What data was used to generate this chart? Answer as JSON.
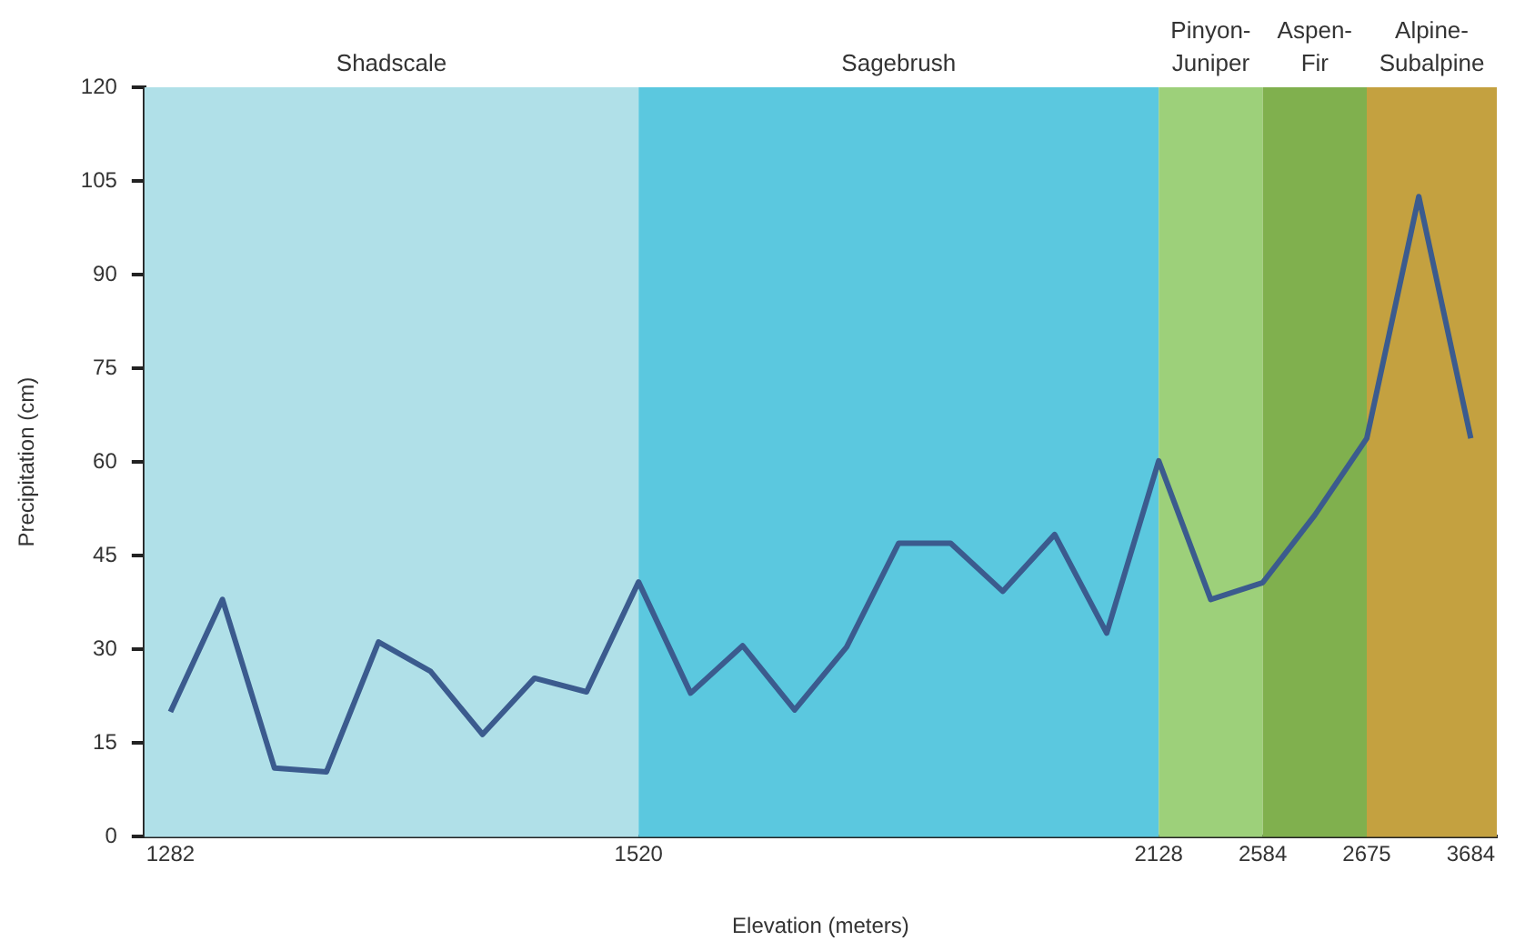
{
  "chart_data": {
    "type": "line",
    "xlabel": "Elevation (meters)",
    "ylabel": "Precipitation (cm)",
    "categories": [
      "1282",
      null,
      null,
      null,
      null,
      null,
      null,
      null,
      null,
      "1520",
      null,
      null,
      null,
      null,
      null,
      null,
      null,
      null,
      null,
      "2128",
      null,
      "2584",
      null,
      "2675",
      null,
      "3684"
    ],
    "series": [
      {
        "color": "#3b5b8e",
        "values": [
          20,
          38,
          11,
          10.4,
          31.2,
          26.5,
          16.4,
          25.4,
          23.2,
          40.8,
          23,
          30.6,
          20.3,
          30.4,
          47,
          47,
          39.3,
          48.4,
          32.6,
          60.2,
          38,
          40.7,
          51.5,
          63.8,
          102.5,
          63.8
        ]
      }
    ],
    "ylim": [
      0,
      120
    ],
    "yticks": [
      0,
      15,
      30,
      45,
      60,
      75,
      90,
      105,
      120
    ],
    "grid": false,
    "legend": false,
    "bands": [
      {
        "axis": "x",
        "from": "1282",
        "to": "1520",
        "label": "Shadscale",
        "color": "#b0e0e8"
      },
      {
        "axis": "x",
        "from": "1520",
        "to": "2128",
        "label": "Sagebrush",
        "color": "#5bc8df"
      },
      {
        "axis": "x",
        "from": "2128",
        "to": "2584",
        "label": "Pinyon-\nJuniper",
        "color": "#9dd07a"
      },
      {
        "axis": "x",
        "from": "2584",
        "to": "2675",
        "label": "Aspen-\nFir",
        "color": "#80b04e"
      },
      {
        "axis": "x",
        "from": "2675",
        "to": "3684",
        "label": "Alpine-\nSubalpine",
        "color": "#c4a140"
      }
    ]
  }
}
